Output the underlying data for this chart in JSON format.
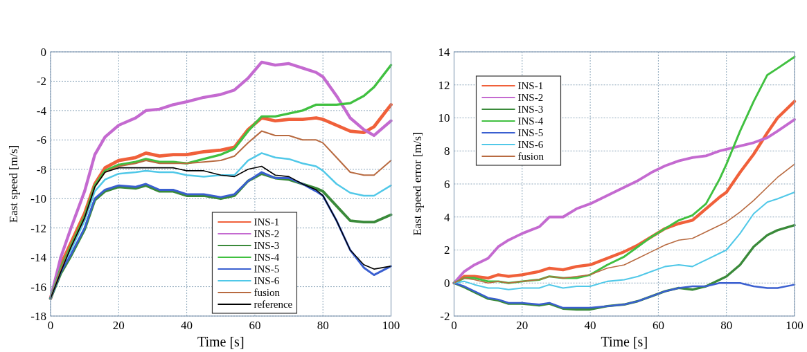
{
  "chart_data": [
    {
      "type": "line",
      "xlabel": "Time [s]",
      "ylabel": "East speed [m/s]",
      "xlim": [
        0,
        100
      ],
      "xticks": [
        0,
        20,
        40,
        60,
        80,
        100
      ],
      "ylim": [
        -18,
        0
      ],
      "yticks": [
        -18,
        -16,
        -14,
        -12,
        -10,
        -8,
        -6,
        -4,
        -2,
        0
      ],
      "grid": true,
      "legend": "bottom",
      "line_style": "solid",
      "x": [
        0,
        3,
        6,
        10,
        13,
        16,
        20,
        25,
        28,
        32,
        36,
        40,
        45,
        50,
        54,
        58,
        62,
        66,
        70,
        74,
        78,
        80,
        84,
        88,
        92,
        95,
        100
      ],
      "series": [
        {
          "name": "INS-1",
          "color": "#f0603a",
          "values": [
            -16.8,
            -14.5,
            -13,
            -11,
            -9,
            -7.9,
            -7.4,
            -7.2,
            -6.9,
            -7.1,
            -7,
            -7,
            -6.8,
            -6.7,
            -6.5,
            -5.3,
            -4.5,
            -4.7,
            -4.6,
            -4.6,
            -4.5,
            -4.6,
            -5,
            -5.4,
            -5.5,
            -5.1,
            -3.6
          ]
        },
        {
          "name": "INS-2",
          "color": "#c46ad0",
          "values": [
            -16.8,
            -14,
            -12,
            -9.5,
            -7,
            -5.8,
            -5,
            -4.5,
            -4,
            -3.9,
            -3.6,
            -3.4,
            -3.1,
            -2.9,
            -2.6,
            -1.8,
            -0.7,
            -0.9,
            -0.8,
            -1.1,
            -1.4,
            -1.7,
            -3,
            -4.5,
            -5.3,
            -5.7,
            -4.7
          ]
        },
        {
          "name": "INS-3",
          "color": "#3a8a3a",
          "values": [
            -16.8,
            -15.1,
            -13.9,
            -12.1,
            -10.1,
            -9.5,
            -9.2,
            -9.3,
            -9.1,
            -9.5,
            -9.5,
            -9.8,
            -9.8,
            -10,
            -9.8,
            -8.8,
            -8.3,
            -8.6,
            -8.7,
            -9,
            -9.3,
            -9.5,
            -10.5,
            -11.5,
            -11.6,
            -11.6,
            -11.1
          ]
        },
        {
          "name": "INS-4",
          "color": "#40c040",
          "values": [
            -16.8,
            -14.7,
            -13.2,
            -11.2,
            -9.1,
            -8.1,
            -7.7,
            -7.5,
            -7.3,
            -7.5,
            -7.5,
            -7.6,
            -7.3,
            -7,
            -6.6,
            -5.4,
            -4.4,
            -4.4,
            -4.2,
            -4,
            -3.6,
            -3.6,
            -3.6,
            -3.5,
            -3,
            -2.4,
            -0.9
          ]
        },
        {
          "name": "INS-5",
          "color": "#3a5fd0",
          "values": [
            -16.8,
            -15,
            -13.8,
            -12,
            -10,
            -9.4,
            -9.1,
            -9.2,
            -9,
            -9.4,
            -9.4,
            -9.7,
            -9.7,
            -9.9,
            -9.7,
            -8.8,
            -8.2,
            -8.6,
            -8.6,
            -9,
            -9.5,
            -9.8,
            -11.5,
            -13.5,
            -14.7,
            -15.2,
            -14.6
          ]
        },
        {
          "name": "INS-6",
          "color": "#50c8e8",
          "values": [
            -16.8,
            -14.8,
            -13.5,
            -11.5,
            -9.5,
            -8.7,
            -8.3,
            -8.2,
            -8.1,
            -8.2,
            -8.2,
            -8.4,
            -8.5,
            -8.4,
            -8.4,
            -7.4,
            -6.9,
            -7.2,
            -7.3,
            -7.6,
            -7.8,
            -8.1,
            -9,
            -9.6,
            -9.8,
            -9.8,
            -9.1
          ]
        },
        {
          "name": "fusion",
          "color": "#b86a40",
          "values": [
            -16.8,
            -14.8,
            -13.3,
            -11.3,
            -9.2,
            -8.2,
            -7.8,
            -7.6,
            -7.4,
            -7.6,
            -7.6,
            -7.6,
            -7.5,
            -7.4,
            -7.1,
            -6.2,
            -5.4,
            -5.7,
            -5.7,
            -6,
            -6,
            -6.2,
            -7.2,
            -8.2,
            -8.4,
            -8.4,
            -7.4
          ]
        },
        {
          "name": "reference",
          "color": "#000000",
          "values": [
            -16.8,
            -15,
            -13.3,
            -11.3,
            -9.2,
            -8.2,
            -7.9,
            -7.9,
            -7.9,
            -7.9,
            -7.9,
            -8.1,
            -8.1,
            -8.4,
            -8.5,
            -8,
            -7.8,
            -8.4,
            -8.5,
            -9,
            -9.4,
            -9.8,
            -11.5,
            -13.5,
            -14.5,
            -14.8,
            -14.6
          ]
        }
      ]
    },
    {
      "type": "line",
      "xlabel": "Time [s]",
      "ylabel": "East speed error [m/s]",
      "xlim": [
        0,
        100
      ],
      "xticks": [
        0,
        20,
        40,
        60,
        80,
        100
      ],
      "ylim": [
        -2,
        14
      ],
      "yticks": [
        -2,
        0,
        2,
        4,
        6,
        8,
        10,
        12,
        14
      ],
      "grid": true,
      "legend": "top left",
      "line_style": "solid",
      "x": [
        0,
        3,
        6,
        10,
        13,
        16,
        20,
        25,
        28,
        32,
        36,
        40,
        45,
        50,
        54,
        58,
        62,
        66,
        70,
        74,
        78,
        80,
        84,
        88,
        92,
        95,
        100
      ],
      "series": [
        {
          "name": "INS-1",
          "color": "#f0603a",
          "values": [
            0,
            0.4,
            0.4,
            0.3,
            0.5,
            0.4,
            0.5,
            0.7,
            0.9,
            0.8,
            1,
            1.1,
            1.5,
            1.9,
            2.3,
            2.8,
            3.3,
            3.6,
            3.8,
            4.5,
            5.2,
            5.5,
            6.7,
            7.8,
            9.1,
            10,
            11
          ]
        },
        {
          "name": "INS-2",
          "color": "#c46ad0",
          "values": [
            0,
            0.7,
            1.1,
            1.5,
            2.2,
            2.6,
            3,
            3.4,
            4,
            4,
            4.5,
            4.8,
            5.3,
            5.8,
            6.2,
            6.7,
            7.1,
            7.4,
            7.6,
            7.7,
            8,
            8.1,
            8.3,
            8.5,
            8.8,
            9.2,
            9.9
          ]
        },
        {
          "name": "INS-3",
          "color": "#3a8a3a",
          "values": [
            0,
            -0.25,
            -0.55,
            -0.95,
            -1.05,
            -1.25,
            -1.25,
            -1.35,
            -1.25,
            -1.55,
            -1.6,
            -1.6,
            -1.4,
            -1.3,
            -1.1,
            -0.8,
            -0.5,
            -0.3,
            -0.4,
            -0.2,
            0.2,
            0.4,
            1.1,
            2.2,
            2.9,
            3.2,
            3.5
          ]
        },
        {
          "name": "INS-4",
          "color": "#40c040",
          "values": [
            0,
            0.3,
            0.3,
            0.1,
            0.1,
            0,
            0.1,
            0.2,
            0.4,
            0.3,
            0.3,
            0.5,
            1.1,
            1.6,
            2.2,
            2.8,
            3.3,
            3.8,
            4.1,
            4.8,
            6.3,
            7.2,
            9.2,
            11,
            12.6,
            13,
            13.7
          ]
        },
        {
          "name": "INS-5",
          "color": "#3a5fd0",
          "values": [
            0,
            -0.2,
            -0.5,
            -0.9,
            -1,
            -1.2,
            -1.2,
            -1.3,
            -1.2,
            -1.5,
            -1.5,
            -1.5,
            -1.4,
            -1.3,
            -1.1,
            -0.8,
            -0.5,
            -0.3,
            -0.2,
            -0.2,
            0,
            0,
            0,
            -0.2,
            -0.3,
            -0.3,
            -0.1
          ]
        },
        {
          "name": "INS-6",
          "color": "#50c8e8",
          "values": [
            0,
            0.1,
            -0.1,
            -0.3,
            -0.3,
            -0.4,
            -0.3,
            -0.3,
            -0.1,
            -0.3,
            -0.2,
            -0.2,
            0.1,
            0.2,
            0.4,
            0.7,
            1,
            1.1,
            1,
            1.4,
            1.8,
            2,
            3,
            4.2,
            4.9,
            5.1,
            5.5
          ]
        },
        {
          "name": "fusion",
          "color": "#b86a40",
          "values": [
            0,
            0.3,
            0.2,
            0,
            0.1,
            0,
            0.1,
            0.2,
            0.4,
            0.3,
            0.4,
            0.5,
            0.9,
            1.1,
            1.5,
            1.9,
            2.3,
            2.6,
            2.7,
            3.1,
            3.5,
            3.7,
            4.3,
            5,
            5.8,
            6.4,
            7.2
          ]
        }
      ]
    }
  ]
}
